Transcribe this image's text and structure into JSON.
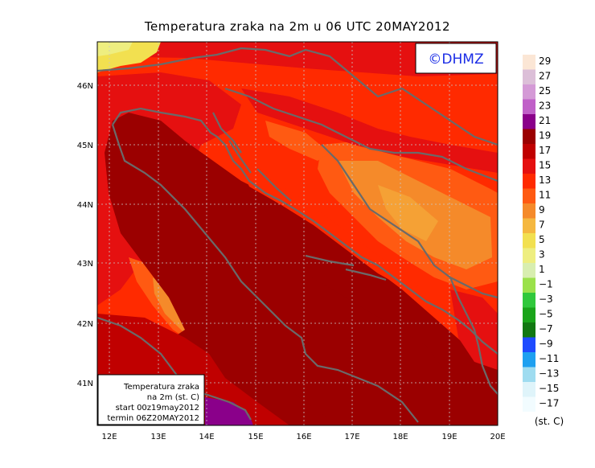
{
  "title": "Temperatura zraka na 2m u 06 UTC 20MAY2012",
  "logo_text": "©DHMZ",
  "info_box": {
    "line1": "Temperatura zraka",
    "line2": "na 2m (st. C)",
    "line3": "start 00z19may2012",
    "line4": "termin 06Z20MAY2012"
  },
  "lon_labels": [
    "12E",
    "13E",
    "14E",
    "15E",
    "16E",
    "17E",
    "18E",
    "19E",
    "20E"
  ],
  "lat_labels": [
    "41N",
    "42N",
    "43N",
    "44N",
    "45N",
    "46N"
  ],
  "legend": {
    "unit": "(st. C)",
    "labels": [
      "29",
      "27",
      "25",
      "23",
      "21",
      "19",
      "17",
      "15",
      "13",
      "11",
      "9",
      "7",
      "5",
      "3",
      "1",
      "−1",
      "−3",
      "−5",
      "−7",
      "−9",
      "−11",
      "−13",
      "−15",
      "−17"
    ],
    "colors": [
      "#fbe6d5",
      "#dcbfd8",
      "#d49ad6",
      "#c060c8",
      "#8a008a",
      "#9b0000",
      "#c00000",
      "#e51010",
      "#ff2a00",
      "#ff5a12",
      "#f58a2a",
      "#f5b840",
      "#f2e050",
      "#eeee80",
      "#d8eeb0",
      "#9be14b",
      "#30c83c",
      "#1aa41a",
      "#127812",
      "#1e4bff",
      "#1ea0f0",
      "#9fdcf0",
      "#dff4fa",
      "#f2fcff"
    ]
  },
  "colors": {
    "sea_deep": "#9b0000",
    "sea": "#c00000",
    "land_warm": "#e51010",
    "land": "#ff2a00",
    "inland": "#f58a2a",
    "cold": "#f2e050",
    "coast": "#6a6a6a"
  }
}
